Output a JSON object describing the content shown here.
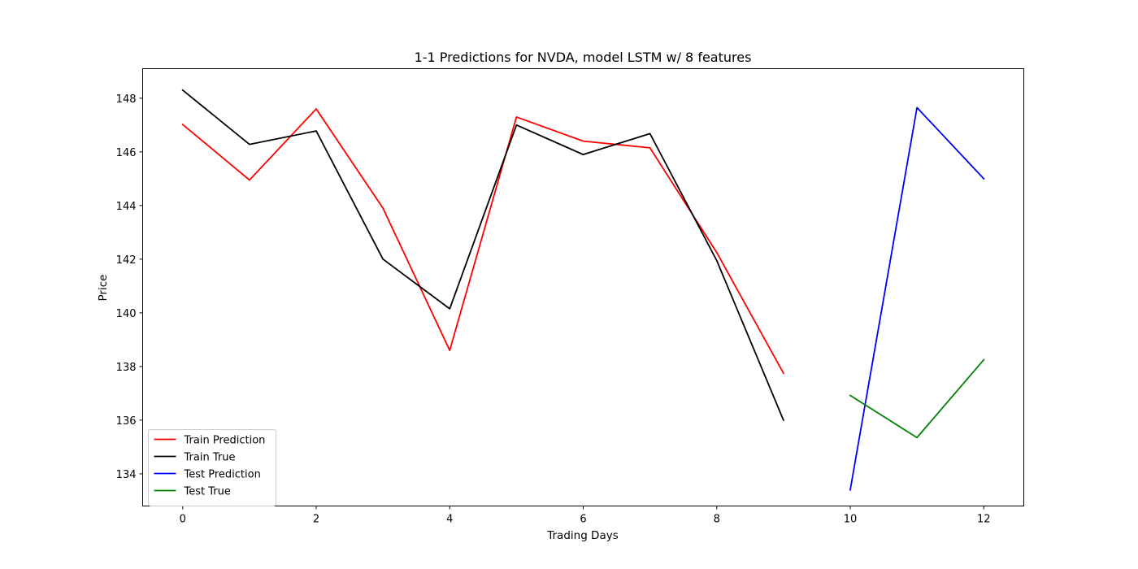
{
  "chart_data": {
    "type": "line",
    "title": "1-1 Predictions for NVDA, model LSTM w/ 8 features",
    "xlabel": "Trading Days",
    "ylabel": "Price",
    "xlim": [
      -0.6,
      12.6
    ],
    "ylim": [
      132.8,
      149.1
    ],
    "xticks": [
      0,
      2,
      4,
      6,
      8,
      10,
      12
    ],
    "yticks": [
      134,
      136,
      138,
      140,
      142,
      144,
      146,
      148
    ],
    "grid": false,
    "legend_position": "lower-left",
    "series": [
      {
        "name": "Train Prediction",
        "color": "#ff0000",
        "x": [
          0,
          1,
          2,
          3,
          4,
          5,
          6,
          7,
          8,
          9
        ],
        "y": [
          147.02,
          144.95,
          147.6,
          143.9,
          138.6,
          147.3,
          146.4,
          146.15,
          142.25,
          137.75
        ]
      },
      {
        "name": "Train True",
        "color": "#000000",
        "x": [
          0,
          1,
          2,
          3,
          4,
          5,
          6,
          7,
          8,
          9
        ],
        "y": [
          148.3,
          146.28,
          146.78,
          142.0,
          140.15,
          147.0,
          145.9,
          146.68,
          141.95,
          136.0
        ]
      },
      {
        "name": "Test Prediction",
        "color": "#0000ff",
        "x": [
          10,
          11,
          12
        ],
        "y": [
          133.4,
          147.65,
          145.0
        ]
      },
      {
        "name": "Test True",
        "color": "#008000",
        "x": [
          10,
          11,
          12
        ],
        "y": [
          136.92,
          135.35,
          138.25
        ]
      }
    ]
  }
}
